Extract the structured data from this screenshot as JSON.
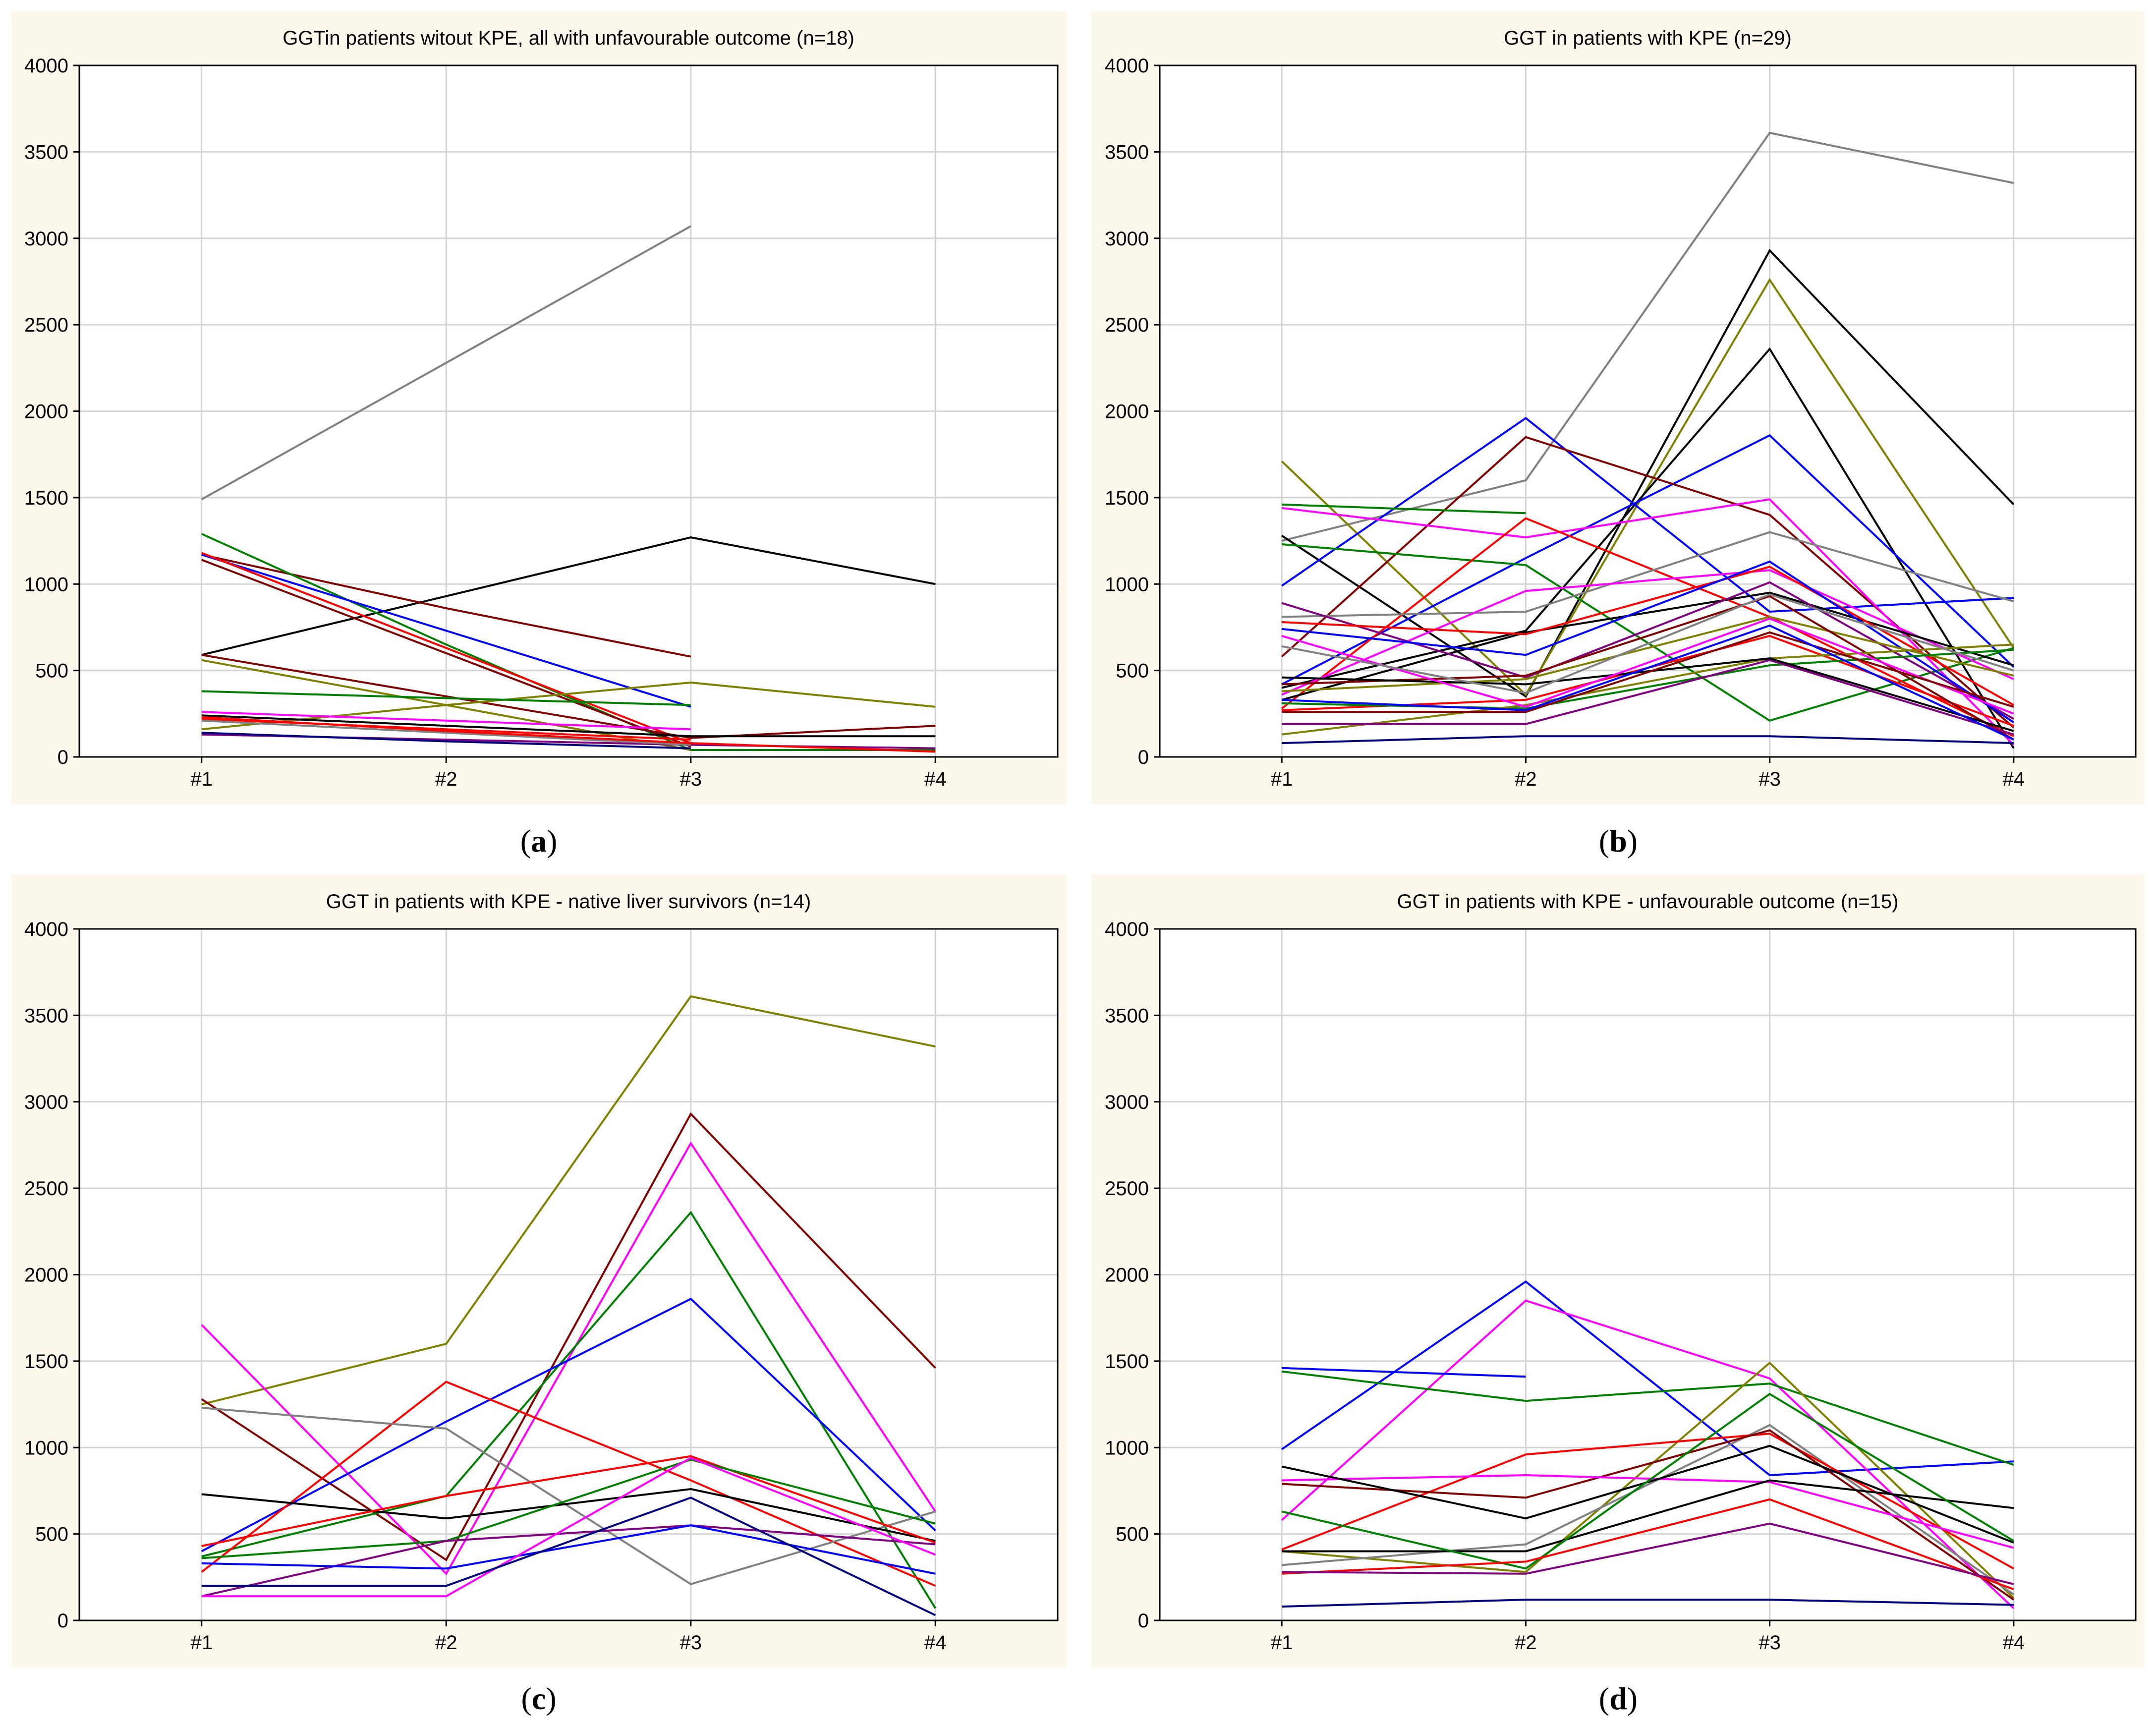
{
  "figure": {
    "captions": [
      "a",
      "b",
      "c",
      "d"
    ]
  },
  "palette": {
    "background": "#fdf8ec",
    "plot_bg": "#ffffff",
    "grid": "#d4d4d4",
    "axis": "#000000"
  },
  "chart_data": [
    {
      "type": "line",
      "title": "GGTin patients witout KPE, all with unfavourable outcome (n=18)",
      "categories": [
        "#1",
        "#2",
        "#3",
        "#4"
      ],
      "ylim": [
        0,
        4000
      ],
      "yticks": [
        0,
        500,
        1000,
        1500,
        2000,
        2500,
        3000,
        3500,
        4000
      ],
      "xlabel": "",
      "ylabel": "",
      "series": [
        {
          "color": "#808080",
          "values": [
            1490,
            2280,
            3070,
            null
          ]
        },
        {
          "color": "#000000",
          "values": [
            590,
            930,
            1270,
            1000
          ]
        },
        {
          "color": "#800000",
          "values": [
            1170,
            860,
            580,
            null
          ]
        },
        {
          "color": "#008000",
          "values": [
            1290,
            650,
            40,
            40
          ]
        },
        {
          "color": "#0000ff",
          "values": [
            1170,
            730,
            290,
            null
          ]
        },
        {
          "color": "#ff0000",
          "values": [
            1180,
            630,
            80,
            null
          ]
        },
        {
          "color": "#800000",
          "values": [
            1140,
            600,
            60,
            null
          ]
        },
        {
          "color": "#808000",
          "values": [
            560,
            300,
            40,
            null
          ]
        },
        {
          "color": "#800000",
          "values": [
            590,
            350,
            110,
            180
          ]
        },
        {
          "color": "#808000",
          "values": [
            160,
            300,
            430,
            290
          ]
        },
        {
          "color": "#008000",
          "values": [
            380,
            340,
            300,
            null
          ]
        },
        {
          "color": "#ff00ff",
          "values": [
            260,
            210,
            160,
            null
          ]
        },
        {
          "color": "#ff0000",
          "values": [
            220,
            160,
            100,
            null
          ]
        },
        {
          "color": "#800080",
          "values": [
            130,
            100,
            70,
            50
          ]
        },
        {
          "color": "#000000",
          "values": [
            240,
            180,
            120,
            120
          ]
        },
        {
          "color": "#808080",
          "values": [
            210,
            140,
            70,
            null
          ]
        },
        {
          "color": "#ff0000",
          "values": [
            230,
            150,
            80,
            30
          ]
        },
        {
          "color": "#000080",
          "values": [
            140,
            90,
            50,
            null
          ]
        }
      ]
    },
    {
      "type": "line",
      "title": "GGT in patients with KPE (n=29)",
      "categories": [
        "#1",
        "#2",
        "#3",
        "#4"
      ],
      "ylim": [
        0,
        4000
      ],
      "yticks": [
        0,
        500,
        1000,
        1500,
        2000,
        2500,
        3000,
        3500,
        4000
      ],
      "xlabel": "",
      "ylabel": "",
      "series": [
        {
          "color": "#808080",
          "values": [
            1250,
            1600,
            3610,
            3320
          ]
        },
        {
          "color": "#000000",
          "values": [
            1280,
            350,
            2930,
            1460
          ]
        },
        {
          "color": "#808000",
          "values": [
            1710,
            360,
            2760,
            630
          ]
        },
        {
          "color": "#000000",
          "values": [
            400,
            730,
            2360,
            50
          ]
        },
        {
          "color": "#0000ff",
          "values": [
            420,
            1150,
            1860,
            520
          ]
        },
        {
          "color": "#0000ff",
          "values": [
            990,
            1960,
            840,
            920
          ]
        },
        {
          "color": "#800000",
          "values": [
            580,
            1850,
            1400,
            170
          ]
        },
        {
          "color": "#ff00ff",
          "values": [
            1440,
            1270,
            1490,
            70
          ]
        },
        {
          "color": "#008000",
          "values": [
            1460,
            1410,
            null,
            null
          ]
        },
        {
          "color": "#008000",
          "values": [
            1230,
            1110,
            210,
            630
          ]
        },
        {
          "color": "#ff0000",
          "values": [
            280,
            1380,
            810,
            120
          ]
        },
        {
          "color": "#808080",
          "values": [
            810,
            840,
            1300,
            900
          ]
        },
        {
          "color": "#ff00ff",
          "values": [
            360,
            960,
            1080,
            450
          ]
        },
        {
          "color": "#000000",
          "values": [
            330,
            720,
            950,
            530
          ]
        },
        {
          "color": "#800080",
          "values": [
            890,
            460,
            1010,
            220
          ]
        },
        {
          "color": "#ff0000",
          "values": [
            780,
            710,
            1100,
            300
          ]
        },
        {
          "color": "#0000ff",
          "values": [
            740,
            590,
            1130,
            200
          ]
        },
        {
          "color": "#808000",
          "values": [
            380,
            450,
            810,
            470
          ]
        },
        {
          "color": "#ff0000",
          "values": [
            270,
            330,
            700,
            180
          ]
        },
        {
          "color": "#800000",
          "values": [
            420,
            470,
            930,
            100
          ]
        },
        {
          "color": "#008000",
          "values": [
            310,
            280,
            530,
            620
          ]
        },
        {
          "color": "#808000",
          "values": [
            130,
            300,
            570,
            650
          ]
        },
        {
          "color": "#800080",
          "values": [
            190,
            190,
            560,
            130
          ]
        },
        {
          "color": "#000000",
          "values": [
            460,
            420,
            570,
            150
          ]
        },
        {
          "color": "#ff00ff",
          "values": [
            700,
            290,
            800,
            250
          ]
        },
        {
          "color": "#808080",
          "values": [
            640,
            370,
            940,
            500
          ]
        },
        {
          "color": "#800000",
          "values": [
            260,
            260,
            720,
            290
          ]
        },
        {
          "color": "#000080",
          "values": [
            80,
            120,
            120,
            80
          ]
        },
        {
          "color": "#0000ff",
          "values": [
            330,
            270,
            760,
            100
          ]
        }
      ]
    },
    {
      "type": "line",
      "title": "GGT in patients with KPE - native liver survivors (n=14)",
      "categories": [
        "#1",
        "#2",
        "#3",
        "#4"
      ],
      "ylim": [
        0,
        4000
      ],
      "yticks": [
        0,
        500,
        1000,
        1500,
        2000,
        2500,
        3000,
        3500,
        4000
      ],
      "xlabel": "",
      "ylabel": "",
      "series": [
        {
          "color": "#808000",
          "values": [
            1250,
            1600,
            3610,
            3320
          ]
        },
        {
          "color": "#800000",
          "values": [
            1280,
            350,
            2930,
            1460
          ]
        },
        {
          "color": "#ff00ff",
          "values": [
            1710,
            270,
            2760,
            630
          ]
        },
        {
          "color": "#008000",
          "values": [
            370,
            720,
            2360,
            70
          ]
        },
        {
          "color": "#0000ff",
          "values": [
            400,
            1150,
            1860,
            520
          ]
        },
        {
          "color": "#ff0000",
          "values": [
            280,
            1380,
            810,
            200
          ]
        },
        {
          "color": "#808080",
          "values": [
            1230,
            1110,
            210,
            630
          ]
        },
        {
          "color": "#000000",
          "values": [
            730,
            590,
            760,
            460
          ]
        },
        {
          "color": "#ff0000",
          "values": [
            430,
            720,
            950,
            450
          ]
        },
        {
          "color": "#008000",
          "values": [
            360,
            460,
            930,
            560
          ]
        },
        {
          "color": "#800080",
          "values": [
            140,
            460,
            550,
            440
          ]
        },
        {
          "color": "#0000ff",
          "values": [
            330,
            300,
            550,
            270
          ]
        },
        {
          "color": "#ff00ff",
          "values": [
            140,
            140,
            940,
            380
          ]
        },
        {
          "color": "#000080",
          "values": [
            200,
            200,
            710,
            30
          ]
        }
      ]
    },
    {
      "type": "line",
      "title": "GGT in patients with KPE - unfavourable outcome (n=15)",
      "categories": [
        "#1",
        "#2",
        "#3",
        "#4"
      ],
      "ylim": [
        0,
        4000
      ],
      "yticks": [
        0,
        500,
        1000,
        1500,
        2000,
        2500,
        3000,
        3500,
        4000
      ],
      "xlabel": "",
      "ylabel": "",
      "series": [
        {
          "color": "#0000ff",
          "values": [
            990,
            1960,
            840,
            920
          ]
        },
        {
          "color": "#ff00ff",
          "values": [
            580,
            1850,
            1400,
            70
          ]
        },
        {
          "color": "#0000ff",
          "values": [
            1460,
            1410,
            null,
            null
          ]
        },
        {
          "color": "#008000",
          "values": [
            1440,
            1270,
            1370,
            900
          ]
        },
        {
          "color": "#808000",
          "values": [
            400,
            280,
            1490,
            130
          ]
        },
        {
          "color": "#808080",
          "values": [
            320,
            440,
            1130,
            150
          ]
        },
        {
          "color": "#ff0000",
          "values": [
            410,
            960,
            1080,
            300
          ]
        },
        {
          "color": "#800000",
          "values": [
            790,
            710,
            1100,
            120
          ]
        },
        {
          "color": "#ff00ff",
          "values": [
            810,
            840,
            800,
            420
          ]
        },
        {
          "color": "#000000",
          "values": [
            890,
            590,
            1010,
            450
          ]
        },
        {
          "color": "#000000",
          "values": [
            400,
            400,
            810,
            650
          ]
        },
        {
          "color": "#008000",
          "values": [
            630,
            300,
            1310,
            460
          ]
        },
        {
          "color": "#ff0000",
          "values": [
            270,
            340,
            700,
            180
          ]
        },
        {
          "color": "#800080",
          "values": [
            280,
            270,
            560,
            210
          ]
        },
        {
          "color": "#000080",
          "values": [
            80,
            120,
            120,
            90
          ]
        }
      ]
    }
  ]
}
